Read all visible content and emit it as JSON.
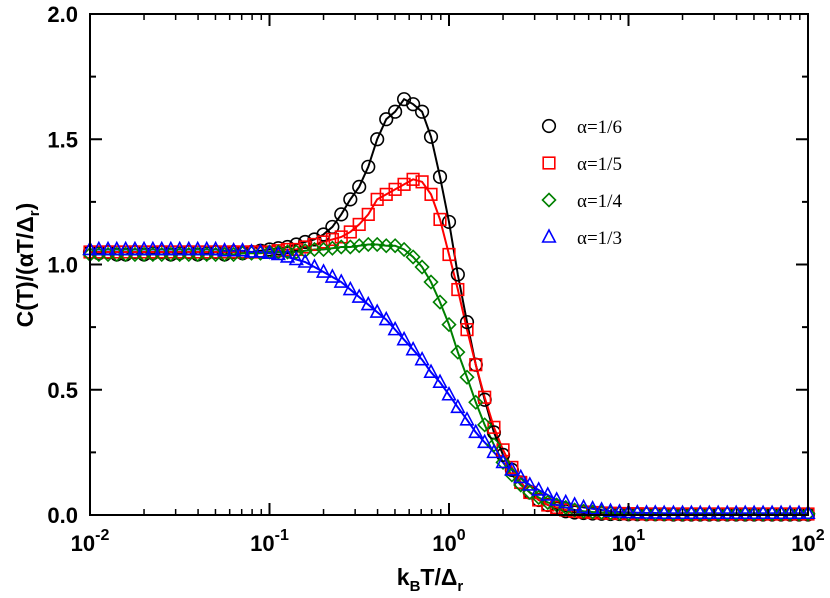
{
  "chart_data": {
    "type": "scatter",
    "title": "",
    "xlabel": {
      "main": "k",
      "sub1": "B",
      "mid": "T/Δ",
      "sub2": "r"
    },
    "ylabel": {
      "main": "C(T)/(αT/Δ",
      "sub": "r",
      "end": ")"
    },
    "xscale": "log",
    "xlim": [
      0.01,
      100
    ],
    "ylim": [
      0,
      2.0
    ],
    "x_ticks": [
      {
        "base": "10",
        "exp": "-2",
        "value": 0.01
      },
      {
        "base": "10",
        "exp": "-1",
        "value": 0.1
      },
      {
        "base": "10",
        "exp": "0",
        "value": 1
      },
      {
        "base": "10",
        "exp": "1",
        "value": 10
      },
      {
        "base": "10",
        "exp": "2",
        "value": 100
      }
    ],
    "y_ticks": [
      "0.0",
      "0.5",
      "1.0",
      "1.5",
      "2.0"
    ],
    "legend_position": "top-right",
    "series": [
      {
        "name": "α=1/6",
        "color": "#000000",
        "marker": "circle",
        "x": [
          0.01,
          0.0112,
          0.0126,
          0.0141,
          0.0158,
          0.0178,
          0.02,
          0.0224,
          0.0251,
          0.0282,
          0.0316,
          0.0355,
          0.0398,
          0.0447,
          0.0501,
          0.0562,
          0.0631,
          0.0708,
          0.0794,
          0.0891,
          0.1,
          0.112,
          0.126,
          0.141,
          0.158,
          0.178,
          0.2,
          0.224,
          0.251,
          0.282,
          0.316,
          0.355,
          0.398,
          0.447,
          0.501,
          0.562,
          0.631,
          0.708,
          0.794,
          0.891,
          1.0,
          1.12,
          1.26,
          1.41,
          1.58,
          1.78,
          2.0,
          2.24,
          2.51,
          2.82,
          3.16,
          3.55,
          3.98,
          4.47,
          5.01,
          5.62,
          6.31,
          7.08,
          7.94,
          8.91,
          10.0,
          11.2,
          12.6,
          14.1,
          15.8,
          17.8,
          20.0,
          22.4,
          25.1,
          28.2,
          31.6,
          35.5,
          39.8,
          44.7,
          50.1,
          56.2,
          63.1,
          70.8,
          79.4,
          89.1,
          100.0
        ],
        "y": [
          1.05,
          1.045,
          1.05,
          1.04,
          1.04,
          1.05,
          1.04,
          1.045,
          1.05,
          1.04,
          1.045,
          1.05,
          1.04,
          1.045,
          1.05,
          1.04,
          1.05,
          1.045,
          1.05,
          1.055,
          1.06,
          1.065,
          1.07,
          1.08,
          1.09,
          1.1,
          1.12,
          1.15,
          1.2,
          1.26,
          1.31,
          1.39,
          1.5,
          1.58,
          1.61,
          1.66,
          1.64,
          1.61,
          1.51,
          1.35,
          1.17,
          0.96,
          0.77,
          0.6,
          0.46,
          0.33,
          0.24,
          0.18,
          0.13,
          0.09,
          0.06,
          0.04,
          0.025,
          0.015,
          0.01,
          0.008,
          0.006,
          0.005,
          0.004,
          0.004,
          0.003,
          0.003,
          0.003,
          0.003,
          0.003,
          0.002,
          0.002,
          0.002,
          0.002,
          0.002,
          0.002,
          0.002,
          0.002,
          0.002,
          0.002,
          0.002,
          0.002,
          0.002,
          0.002,
          0.002,
          0.002
        ]
      },
      {
        "name": "α=1/5",
        "color": "#ff0000",
        "marker": "square",
        "x": [
          0.01,
          0.0112,
          0.0126,
          0.0141,
          0.0158,
          0.0178,
          0.02,
          0.0224,
          0.0251,
          0.0282,
          0.0316,
          0.0355,
          0.0398,
          0.0447,
          0.0501,
          0.0562,
          0.0631,
          0.0708,
          0.0794,
          0.0891,
          0.1,
          0.112,
          0.126,
          0.141,
          0.158,
          0.178,
          0.2,
          0.224,
          0.251,
          0.282,
          0.316,
          0.355,
          0.398,
          0.447,
          0.501,
          0.562,
          0.631,
          0.708,
          0.794,
          0.891,
          1.0,
          1.12,
          1.26,
          1.41,
          1.58,
          1.78,
          2.0,
          2.24,
          2.51,
          2.82,
          3.16,
          3.55,
          3.98,
          4.47,
          5.01,
          5.62,
          6.31,
          7.08,
          7.94,
          8.91,
          10.0,
          11.2,
          12.6,
          14.1,
          15.8,
          17.8,
          20.0,
          22.4,
          25.1,
          28.2,
          31.6,
          35.5,
          39.8,
          44.7,
          50.1,
          56.2,
          63.1,
          70.8,
          79.4,
          89.1,
          100.0
        ],
        "y": [
          1.05,
          1.05,
          1.05,
          1.05,
          1.05,
          1.05,
          1.05,
          1.05,
          1.05,
          1.05,
          1.05,
          1.05,
          1.05,
          1.05,
          1.05,
          1.05,
          1.05,
          1.05,
          1.05,
          1.05,
          1.05,
          1.055,
          1.06,
          1.06,
          1.07,
          1.08,
          1.09,
          1.1,
          1.11,
          1.13,
          1.16,
          1.2,
          1.26,
          1.28,
          1.3,
          1.32,
          1.34,
          1.33,
          1.28,
          1.18,
          1.04,
          0.9,
          0.74,
          0.6,
          0.47,
          0.35,
          0.26,
          0.19,
          0.13,
          0.09,
          0.06,
          0.04,
          0.03,
          0.02,
          0.015,
          0.012,
          0.01,
          0.008,
          0.007,
          0.006,
          0.005,
          0.005,
          0.004,
          0.004,
          0.004,
          0.004,
          0.004,
          0.004,
          0.004,
          0.004,
          0.004,
          0.004,
          0.004,
          0.004,
          0.004,
          0.004,
          0.004,
          0.004,
          0.004,
          0.004,
          0.004
        ]
      },
      {
        "name": "α=1/4",
        "color": "#008000",
        "marker": "diamond",
        "x": [
          0.01,
          0.0112,
          0.0126,
          0.0141,
          0.0158,
          0.0178,
          0.02,
          0.0224,
          0.0251,
          0.0282,
          0.0316,
          0.0355,
          0.0398,
          0.0447,
          0.0501,
          0.0562,
          0.0631,
          0.0708,
          0.0794,
          0.0891,
          0.1,
          0.112,
          0.126,
          0.141,
          0.158,
          0.178,
          0.2,
          0.224,
          0.251,
          0.282,
          0.316,
          0.355,
          0.398,
          0.447,
          0.501,
          0.562,
          0.631,
          0.708,
          0.794,
          0.891,
          1.0,
          1.12,
          1.26,
          1.41,
          1.58,
          1.78,
          2.0,
          2.24,
          2.51,
          2.82,
          3.16,
          3.55,
          3.98,
          4.47,
          5.01,
          5.62,
          6.31,
          7.08,
          7.94,
          8.91,
          10.0,
          11.2,
          12.6,
          14.1,
          15.8,
          17.8,
          20.0,
          22.4,
          25.1,
          28.2,
          31.6,
          35.5,
          39.8,
          44.7,
          50.1,
          56.2,
          63.1,
          70.8,
          79.4,
          89.1,
          100.0
        ],
        "y": [
          1.04,
          1.04,
          1.04,
          1.04,
          1.04,
          1.04,
          1.04,
          1.04,
          1.04,
          1.04,
          1.04,
          1.04,
          1.04,
          1.04,
          1.04,
          1.04,
          1.04,
          1.045,
          1.045,
          1.045,
          1.05,
          1.05,
          1.05,
          1.05,
          1.055,
          1.06,
          1.06,
          1.065,
          1.07,
          1.07,
          1.075,
          1.08,
          1.08,
          1.075,
          1.075,
          1.06,
          1.03,
          0.99,
          0.93,
          0.85,
          0.76,
          0.65,
          0.55,
          0.45,
          0.36,
          0.28,
          0.21,
          0.16,
          0.12,
          0.09,
          0.07,
          0.05,
          0.04,
          0.03,
          0.02,
          0.015,
          0.012,
          0.01,
          0.008,
          0.007,
          0.006,
          0.006,
          0.005,
          0.005,
          0.005,
          0.005,
          0.005,
          0.005,
          0.005,
          0.005,
          0.005,
          0.005,
          0.005,
          0.005,
          0.005,
          0.005,
          0.005,
          0.005,
          0.005,
          0.005,
          0.005
        ]
      },
      {
        "name": "α=1/3",
        "color": "#0000ff",
        "marker": "triangle",
        "x": [
          0.01,
          0.0112,
          0.0126,
          0.0141,
          0.0158,
          0.0178,
          0.02,
          0.0224,
          0.0251,
          0.0282,
          0.0316,
          0.0355,
          0.0398,
          0.0447,
          0.0501,
          0.0562,
          0.0631,
          0.0708,
          0.0794,
          0.0891,
          0.1,
          0.112,
          0.126,
          0.141,
          0.158,
          0.178,
          0.2,
          0.224,
          0.251,
          0.282,
          0.316,
          0.355,
          0.398,
          0.447,
          0.501,
          0.562,
          0.631,
          0.708,
          0.794,
          0.891,
          1.0,
          1.12,
          1.26,
          1.41,
          1.58,
          1.78,
          2.0,
          2.24,
          2.51,
          2.82,
          3.16,
          3.55,
          3.98,
          4.47,
          5.01,
          5.62,
          6.31,
          7.08,
          7.94,
          8.91,
          10.0,
          11.2,
          12.6,
          14.1,
          15.8,
          17.8,
          20.0,
          22.4,
          25.1,
          28.2,
          31.6,
          35.5,
          39.8,
          44.7,
          50.1,
          56.2,
          63.1,
          70.8,
          79.4,
          89.1,
          100.0
        ],
        "y": [
          1.06,
          1.06,
          1.06,
          1.06,
          1.06,
          1.06,
          1.06,
          1.06,
          1.06,
          1.06,
          1.06,
          1.06,
          1.06,
          1.06,
          1.06,
          1.055,
          1.055,
          1.055,
          1.05,
          1.05,
          1.045,
          1.04,
          1.03,
          1.02,
          1.01,
          0.99,
          0.97,
          0.95,
          0.93,
          0.9,
          0.87,
          0.84,
          0.81,
          0.78,
          0.74,
          0.7,
          0.66,
          0.62,
          0.57,
          0.53,
          0.48,
          0.43,
          0.38,
          0.33,
          0.29,
          0.25,
          0.21,
          0.18,
          0.15,
          0.12,
          0.1,
          0.08,
          0.06,
          0.05,
          0.04,
          0.03,
          0.025,
          0.02,
          0.015,
          0.012,
          0.01,
          0.009,
          0.008,
          0.008,
          0.007,
          0.007,
          0.007,
          0.007,
          0.007,
          0.007,
          0.007,
          0.007,
          0.007,
          0.007,
          0.007,
          0.007,
          0.007,
          0.007,
          0.007,
          0.007,
          0.007
        ]
      }
    ]
  }
}
